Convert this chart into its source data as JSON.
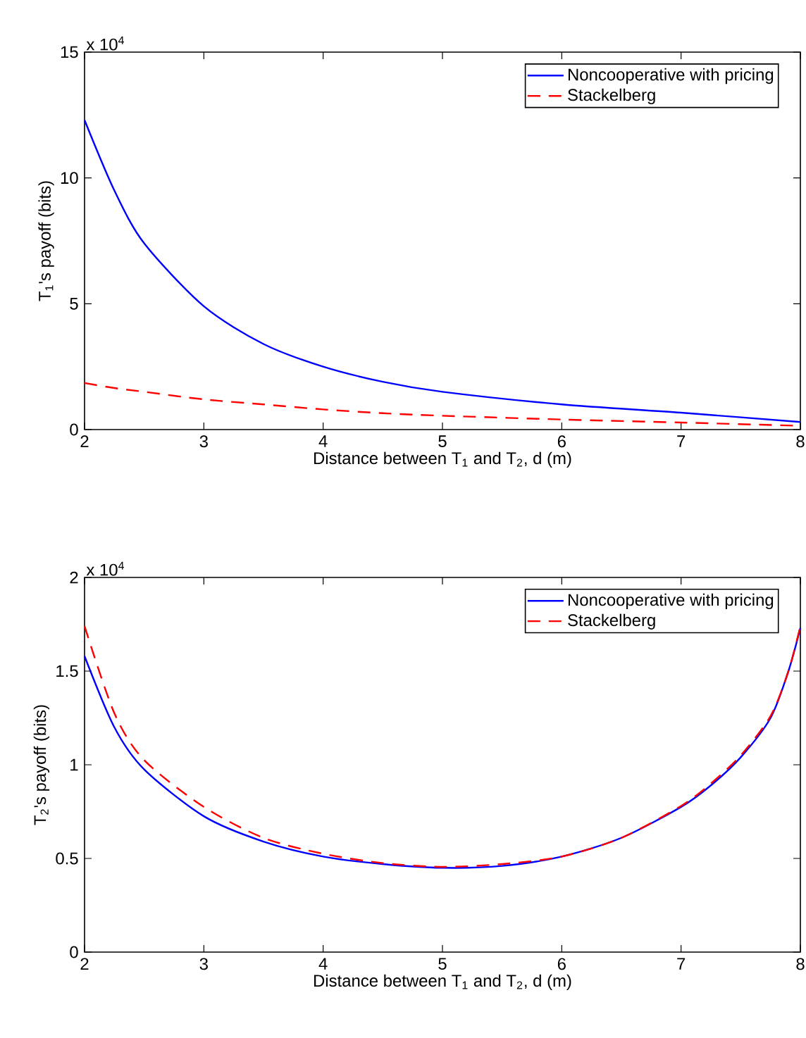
{
  "chart_data": [
    {
      "type": "line",
      "xlabel": "Distance between T$_{1}$ and T$_{2}$, d (m)",
      "ylabel": "T$_{1}$'s payoff (bits)",
      "annotations": [
        "x 10$^{4}$"
      ],
      "xlim": [
        2,
        8
      ],
      "ylim": [
        0,
        15
      ],
      "xticks": [
        2,
        3,
        4,
        5,
        6,
        7,
        8
      ],
      "yticks": [
        0,
        5,
        10,
        15
      ],
      "legend": "top right",
      "grid": false,
      "marker": "none",
      "x": [
        2,
        2.25,
        2.5,
        3,
        3.5,
        4,
        4.5,
        5,
        6,
        7,
        8
      ],
      "series": [
        {
          "name": "Noncooperative with pricing",
          "color": "#0000ff",
          "line_style": "solid",
          "values": [
            12.3,
            9.5,
            7.4,
            4.9,
            3.4,
            2.5,
            1.9,
            1.5,
            1.0,
            0.67,
            0.3
          ]
        },
        {
          "name": "Stackelberg",
          "color": "#ff0000",
          "line_style": "dashed",
          "values": [
            1.85,
            1.65,
            1.5,
            1.2,
            1.0,
            0.8,
            0.65,
            0.55,
            0.4,
            0.28,
            0.15
          ]
        }
      ]
    },
    {
      "type": "line",
      "xlabel": "Distance between T$_{1}$ and T$_{2}$, d (m)",
      "ylabel": "T$_{2}$'s payoff (bits)",
      "annotations": [
        "x 10$^{4}$"
      ],
      "xlim": [
        2,
        8
      ],
      "ylim": [
        0,
        2
      ],
      "xticks": [
        2,
        3,
        4,
        5,
        6,
        7,
        8
      ],
      "yticks": [
        0,
        0.5,
        1,
        1.5,
        2
      ],
      "legend": "top right",
      "grid": false,
      "marker": "none",
      "x": [
        2,
        2.25,
        2.5,
        3,
        3.5,
        4,
        4.5,
        5,
        5.5,
        6,
        6.5,
        7,
        7.25,
        7.5,
        7.75,
        7.9,
        8
      ],
      "series": [
        {
          "name": "Noncooperative with pricing",
          "color": "#0000ff",
          "line_style": "solid",
          "values": [
            1.58,
            1.2,
            0.975,
            0.725,
            0.59,
            0.51,
            0.47,
            0.45,
            0.46,
            0.51,
            0.61,
            0.775,
            0.89,
            1.04,
            1.25,
            1.5,
            1.73
          ]
        },
        {
          "name": "Stackelberg",
          "color": "#ff0000",
          "line_style": "dashed",
          "values": [
            1.74,
            1.275,
            1.025,
            0.775,
            0.61,
            0.525,
            0.475,
            0.455,
            0.47,
            0.51,
            0.61,
            0.78,
            0.9,
            1.05,
            1.26,
            1.5,
            1.74
          ]
        }
      ]
    }
  ]
}
